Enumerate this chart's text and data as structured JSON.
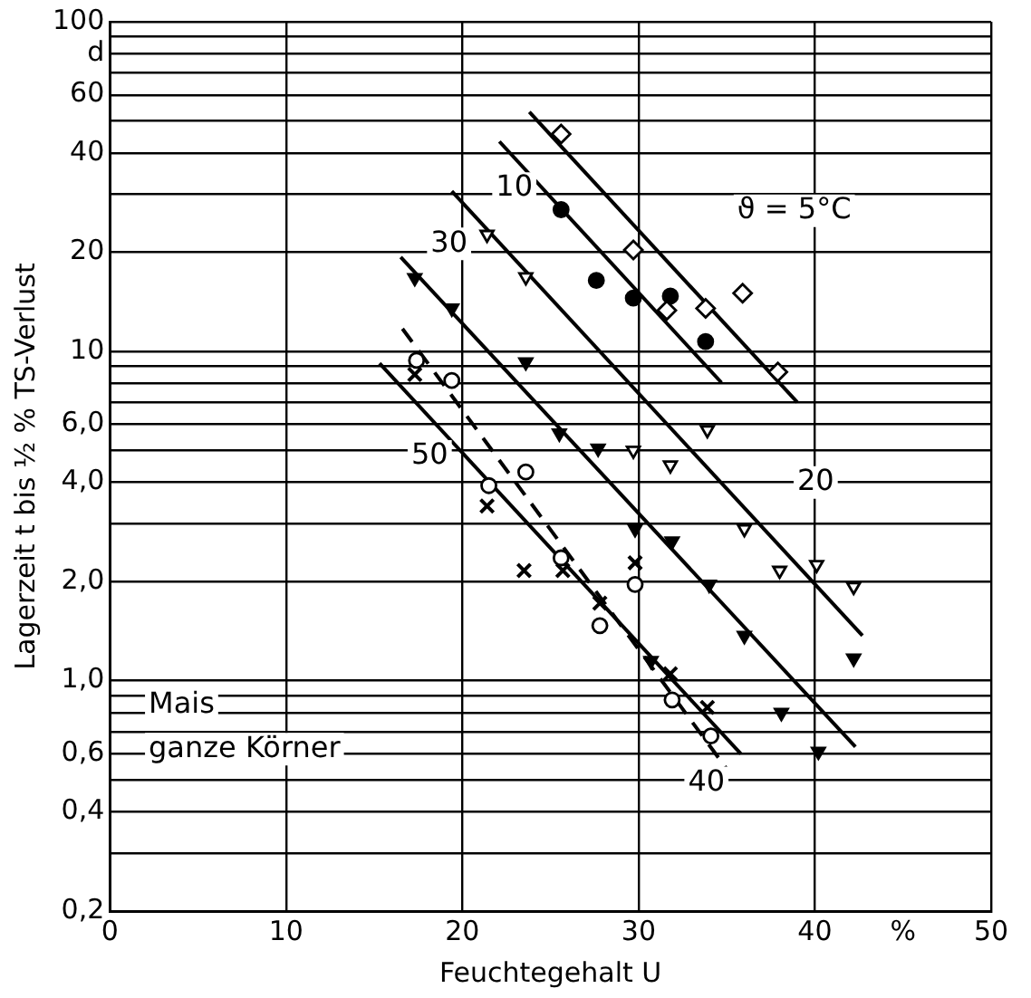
{
  "chart_data": {
    "type": "scatter",
    "xlabel": "Feuchtegehalt U",
    "ylabel": "Lagerzeit t bis ½ % TS-Verlust",
    "xlim": [
      0,
      50
    ],
    "xticks": [
      0,
      10,
      20,
      30,
      40,
      {
        "value": 45,
        "label": "%"
      },
      50
    ],
    "ylim": [
      0.2,
      100
    ],
    "yticks": [
      {
        "value": 0.2,
        "label": "0,2"
      },
      {
        "value": 0.3,
        "label": null
      },
      {
        "value": 0.4,
        "label": "0,4"
      },
      {
        "value": 0.5,
        "label": null
      },
      {
        "value": 0.6,
        "label": "0,6"
      },
      {
        "value": 0.7,
        "label": null
      },
      {
        "value": 0.8,
        "label": null
      },
      {
        "value": 0.9,
        "label": null
      },
      {
        "value": 1,
        "label": "1,0"
      },
      {
        "value": 2,
        "label": "2,0"
      },
      {
        "value": 3,
        "label": null
      },
      {
        "value": 4,
        "label": "4,0"
      },
      {
        "value": 5,
        "label": null
      },
      {
        "value": 6,
        "label": "6,0"
      },
      {
        "value": 7,
        "label": null
      },
      {
        "value": 8,
        "label": null
      },
      {
        "value": 9,
        "label": null
      },
      10,
      20,
      {
        "value": 30,
        "label": null
      },
      40,
      {
        "value": 50,
        "label": null
      },
      60,
      {
        "value": 70,
        "label": null
      },
      {
        "value": 80,
        "label": "d"
      },
      {
        "value": 90,
        "label": null
      },
      100
    ],
    "log": "y",
    "grid": true,
    "legend": false,
    "series": [
      {
        "type": "scatter",
        "marker": "diamond",
        "color": "#ffffff",
        "x": [
          25.6,
          29.7,
          31.6,
          33.8,
          35.9,
          37.9
        ],
        "values": [
          45.6,
          20.3,
          13.3,
          13.5,
          15.0,
          8.65
        ]
      },
      {
        "type": "scatter",
        "marker": "circle",
        "color": "#000000",
        "x": [
          25.6,
          27.6,
          29.7,
          31.8,
          33.8
        ],
        "values": [
          26.9,
          16.4,
          14.5,
          14.7,
          10.7
        ]
      },
      {
        "type": "scatter",
        "marker": "triangle",
        "color": "#ffffff",
        "x": [
          21.4,
          23.6,
          29.7,
          31.8,
          33.9,
          36.0,
          38.0,
          40.1,
          42.2
        ],
        "values": [
          22.6,
          16.8,
          5.0,
          4.51,
          5.77,
          2.89,
          2.16,
          2.25,
          1.93
        ]
      },
      {
        "type": "scatter",
        "marker": "triangle",
        "color": "#000000",
        "x": [
          17.3,
          19.4,
          23.6,
          25.5,
          27.7,
          29.8,
          30.7,
          31.9,
          34.0,
          36.0,
          38.1,
          40.2,
          42.2
        ],
        "values": [
          16.7,
          13.5,
          9.27,
          5.64,
          5.07,
          2.89,
          1.15,
          2.65,
          1.96,
          1.37,
          0.8,
          0.61,
          1.17
        ]
      },
      {
        "type": "scatter",
        "marker": "circle",
        "color": "#ffffff",
        "x": [
          17.4,
          19.4,
          21.5,
          23.6,
          25.6,
          27.8,
          29.8,
          31.9,
          34.1
        ],
        "values": [
          9.38,
          8.15,
          3.91,
          4.3,
          2.36,
          1.47,
          1.96,
          0.875,
          0.68
        ]
      },
      {
        "type": "scatter",
        "marker": "cross",
        "color": "#000000",
        "x": [
          17.3,
          21.4,
          23.5,
          25.7,
          27.8,
          29.8,
          31.8,
          33.9
        ],
        "values": [
          8.5,
          3.39,
          2.16,
          2.16,
          1.72,
          2.28,
          1.05,
          0.83
        ]
      },
      {
        "type": "line",
        "line_style": "solid",
        "color": "#000000",
        "x": [
          23.8,
          39.0
        ],
        "values": [
          53.2,
          7.0
        ]
      },
      {
        "type": "line",
        "line_style": "solid",
        "color": "#000000",
        "x": [
          22.1,
          34.7
        ],
        "values": [
          43.3,
          8.03
        ]
      },
      {
        "type": "line",
        "line_style": "solid",
        "color": "#000000",
        "x": [
          19.4,
          42.7
        ],
        "values": [
          30.6,
          1.37
        ]
      },
      {
        "type": "line",
        "line_style": "solid",
        "color": "#000000",
        "x": [
          16.5,
          42.3
        ],
        "values": [
          19.3,
          0.63
        ]
      },
      {
        "type": "line",
        "line_style": "solid",
        "color": "#000000",
        "x": [
          15.3,
          35.8
        ],
        "values": [
          9.19,
          0.6
        ]
      },
      {
        "type": "line",
        "line_style": "dashed",
        "color": "#000000",
        "x": [
          16.6,
          35.0
        ],
        "values": [
          11.7,
          0.54
        ]
      }
    ],
    "annotations": [
      "ϑ = 5°C",
      "10",
      "20",
      "30",
      "40",
      "50",
      "Mais",
      "ganze Körner"
    ]
  }
}
